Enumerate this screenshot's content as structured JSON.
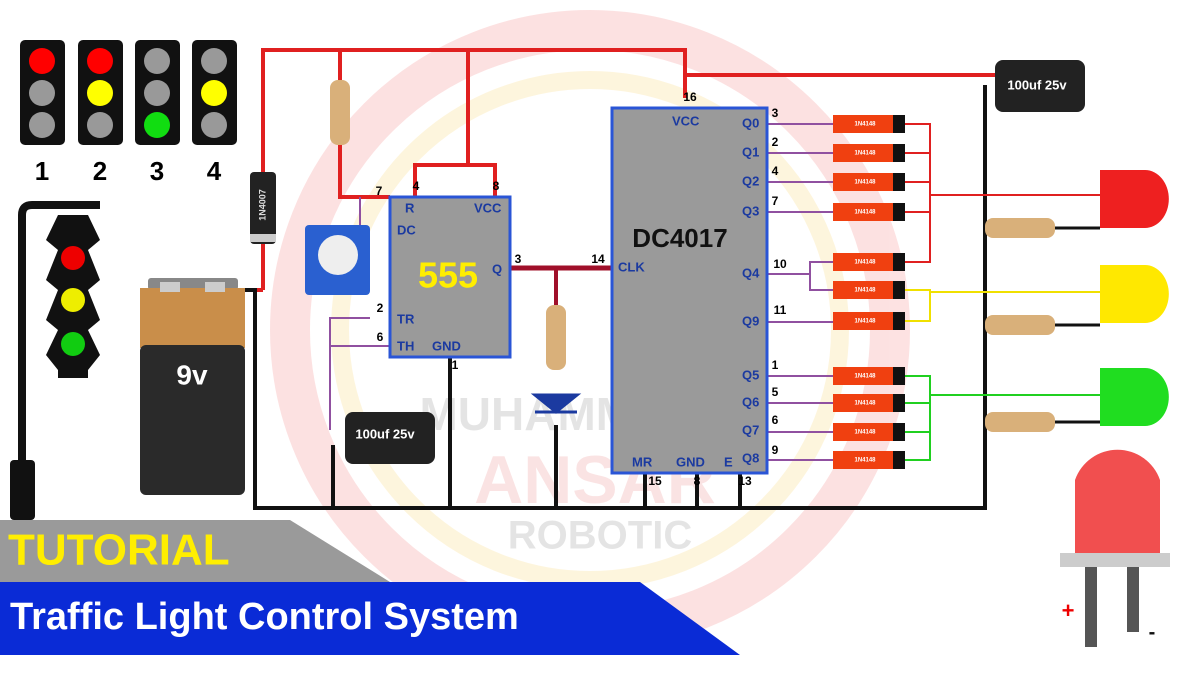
{
  "signal_icons": [
    "1",
    "2",
    "3",
    "4"
  ],
  "power_diode": "1N4007",
  "battery": "9v",
  "capacitors": [
    "100uf 25v",
    "100uf 25v"
  ],
  "timer_ic": {
    "name": "555",
    "pins": [
      {
        "name": "R",
        "number": "4"
      },
      {
        "name": "VCC",
        "number": "8"
      },
      {
        "name": "DC",
        "number": "7"
      },
      {
        "name": "Q",
        "number": "3"
      },
      {
        "name": "TR",
        "number": "2"
      },
      {
        "name": "TH",
        "number": "6"
      },
      {
        "name": "GND",
        "number": "1"
      }
    ]
  },
  "counter_ic": {
    "name": "DC4017",
    "pins": [
      {
        "name": "VCC",
        "number": "16"
      },
      {
        "name": "Q0",
        "number": "3"
      },
      {
        "name": "Q1",
        "number": "2"
      },
      {
        "name": "Q2",
        "number": "4"
      },
      {
        "name": "Q3",
        "number": "7"
      },
      {
        "name": "CLK",
        "number": "14"
      },
      {
        "name": "Q4",
        "number": "10"
      },
      {
        "name": "Q9",
        "number": "11"
      },
      {
        "name": "Q5",
        "number": "1"
      },
      {
        "name": "Q6",
        "number": "5"
      },
      {
        "name": "Q7",
        "number": "6"
      },
      {
        "name": "Q8",
        "number": "9"
      },
      {
        "name": "MR",
        "number": "15"
      },
      {
        "name": "GND",
        "number": "8"
      },
      {
        "name": "E",
        "number": "13"
      }
    ]
  },
  "diodes": [
    "1N4148",
    "1N4148",
    "1N4148",
    "1N4148",
    "1N4148",
    "1N4148",
    "1N4148",
    "1N4148",
    "1N4148",
    "1N4148",
    "1N4148"
  ],
  "watermark": [
    "MUHAMMAD",
    "ANSAR",
    "ROBOTIC"
  ],
  "banner": {
    "tag": "TUTORIAL",
    "title": "Traffic Light Control System"
  },
  "led_polarity": {
    "plus": "+",
    "minus": "-"
  }
}
